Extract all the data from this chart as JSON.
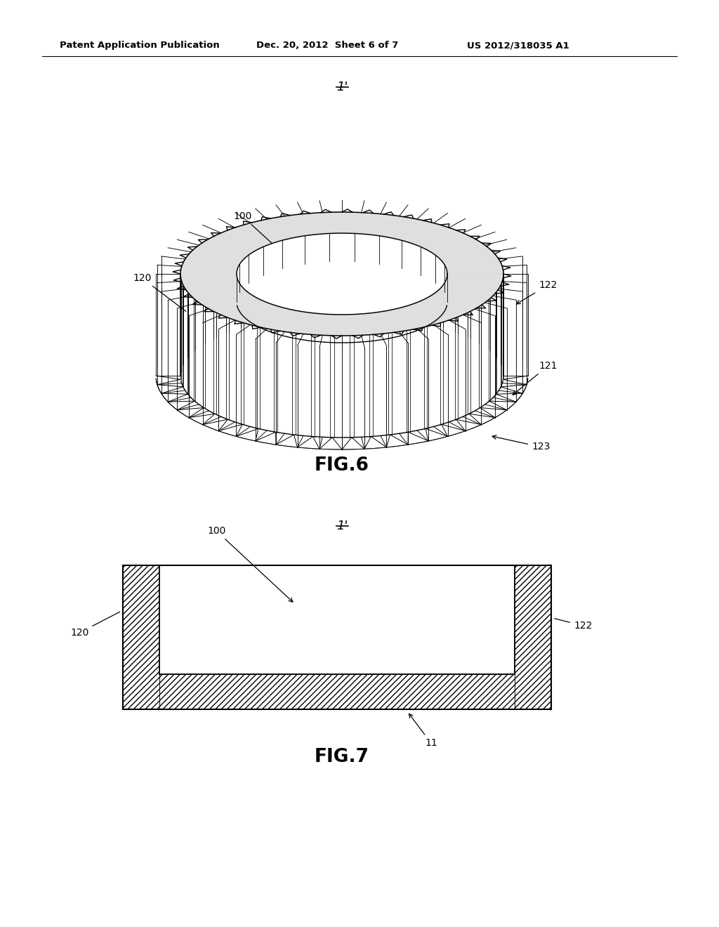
{
  "background_color": "#ffffff",
  "header_left": "Patent Application Publication",
  "header_center": "Dec. 20, 2012  Sheet 6 of 7",
  "header_right": "US 2012/318035 A1",
  "fig6_label": "FIG.6",
  "fig7_label": "FIG.7",
  "label_1prime_fig6": "1'",
  "label_1prime_fig7": "1'",
  "ann_100_fig6": "100",
  "ann_120_fig6": "120",
  "ann_121_fig6": "121",
  "ann_122_fig6": "122",
  "ann_123_fig6": "123",
  "ann_100_fig7": "100",
  "ann_120_fig7": "120",
  "ann_122_fig7": "122",
  "ann_11_fig7": "11",
  "line_color": "#000000"
}
